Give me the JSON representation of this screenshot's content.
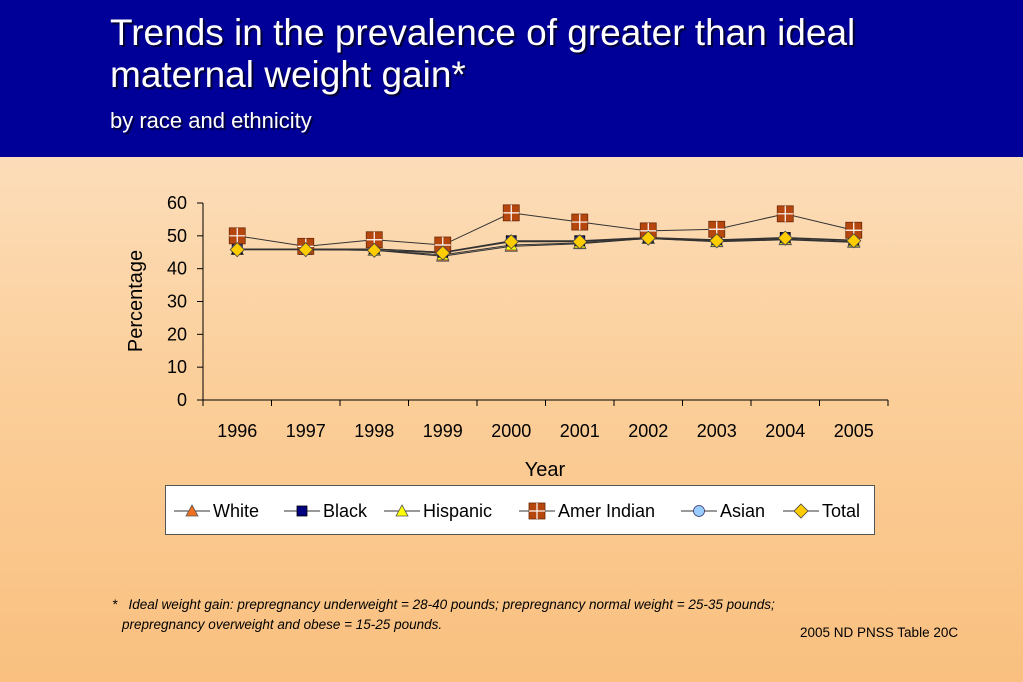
{
  "header": {
    "title_line1": "Trends in the prevalence of greater than ideal",
    "title_line2": "maternal weight gain*",
    "subtitle": "by race and ethnicity"
  },
  "colors": {
    "header_bg": "#000099",
    "white": "#f07020",
    "black": "#000080",
    "hispanic": "#ffff00",
    "amer_indian": "#b5460e",
    "asian": "#99ccff",
    "total": "#ffcc00"
  },
  "chart_data": {
    "type": "line",
    "xlabel": "Year",
    "ylabel": "Percentage",
    "ylim": [
      0,
      60
    ],
    "yticks": [
      "0",
      "10",
      "20",
      "30",
      "40",
      "50",
      "60"
    ],
    "categories": [
      "1996",
      "1997",
      "1998",
      "1999",
      "2000",
      "2001",
      "2002",
      "2003",
      "2004",
      "2005"
    ],
    "legend_position": "bottom",
    "grid": false,
    "series": [
      {
        "name": "White",
        "marker": "triangle",
        "color": "#f07020",
        "values": [
          45.8,
          45.8,
          45.6,
          43.8,
          46.8,
          47.6,
          49.2,
          48.2,
          48.8,
          48.0
        ]
      },
      {
        "name": "Black",
        "marker": "square",
        "color": "#000080",
        "values": [
          46.0,
          46.0,
          46.0,
          45.0,
          48.5,
          48.5,
          49.5,
          48.8,
          49.5,
          48.7
        ]
      },
      {
        "name": "Hispanic",
        "marker": "triangle",
        "color": "#ffff00",
        "values": [
          45.8,
          45.8,
          45.6,
          44.2,
          47.2,
          47.8,
          49.2,
          48.3,
          49.0,
          48.2
        ]
      },
      {
        "name": "Amer Indian",
        "marker": "crossbox",
        "color": "#b5460e",
        "values": [
          50.0,
          46.8,
          48.8,
          47.2,
          57.0,
          54.2,
          51.5,
          52.0,
          56.7,
          51.7
        ]
      },
      {
        "name": "Asian",
        "marker": "circle",
        "color": "#99ccff",
        "values": [
          46.0,
          46.0,
          46.0,
          45.0,
          48.3,
          48.3,
          49.3,
          48.6,
          49.3,
          48.6
        ]
      },
      {
        "name": "Total",
        "marker": "diamond",
        "color": "#ffcc00",
        "values": [
          45.8,
          45.8,
          45.6,
          44.8,
          48.2,
          48.2,
          49.3,
          48.5,
          49.3,
          48.5
        ]
      }
    ]
  },
  "footnote": {
    "marker": "*",
    "line1": "Ideal weight gain: prepregnancy underweight = 28-40 pounds; prepregnancy normal weight = 25-35 pounds;",
    "line2": "prepregnancy overweight and obese = 15-25 pounds."
  },
  "source": "2005 ND PNSS Table 20C"
}
